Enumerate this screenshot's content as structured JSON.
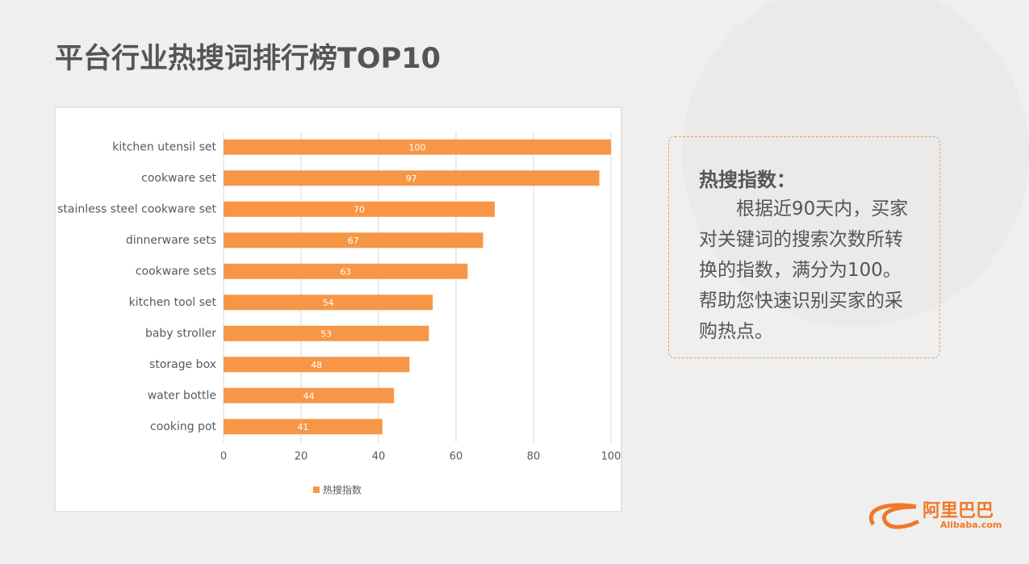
{
  "title": "平台行业热搜词排行榜TOP10",
  "chart_data": {
    "type": "bar",
    "orientation": "horizontal",
    "categories": [
      "kitchen utensil set",
      "cookware set",
      "stainless steel cookware set",
      "dinnerware sets",
      "cookware sets",
      "kitchen tool set",
      "baby stroller",
      "storage box",
      "water bottle",
      "cooking pot"
    ],
    "series": [
      {
        "name": "热搜指数",
        "color": "#f79646",
        "values": [
          100,
          97,
          70,
          67,
          63,
          54,
          53,
          48,
          44,
          41
        ]
      }
    ],
    "xlim": [
      0,
      100
    ],
    "xticks": [
      0,
      20,
      40,
      60,
      80,
      100
    ],
    "grid": true,
    "legend": "bottom",
    "data_labels": true
  },
  "note": {
    "heading": "热搜指数：",
    "body": "根据近90天内，买家对关键词的搜索次数所转换的指数，满分为100。帮助您快速识别买家的采购热点。"
  },
  "logo": {
    "name": "阿里巴巴",
    "domain": "Alibaba.com"
  }
}
